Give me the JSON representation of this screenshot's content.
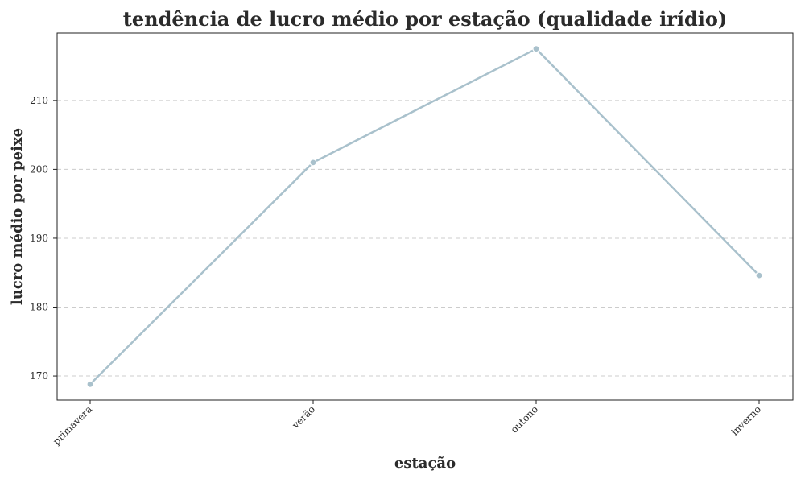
{
  "chart_data": {
    "type": "line",
    "title": "tendência de lucro médio por estação (qualidade irídio)",
    "xlabel": "estação",
    "ylabel": "lucro médio por peixe",
    "categories": [
      "primavera",
      "verão",
      "outono",
      "inverno"
    ],
    "series": [
      {
        "values": [
          168.8,
          201.0,
          217.5,
          184.6
        ],
        "color": "#a9c1cc"
      }
    ],
    "ylim": [
      166.5,
      219.8
    ],
    "yticks": [
      170,
      180,
      190,
      200,
      210
    ],
    "grid": true,
    "grid_axis": "y"
  }
}
